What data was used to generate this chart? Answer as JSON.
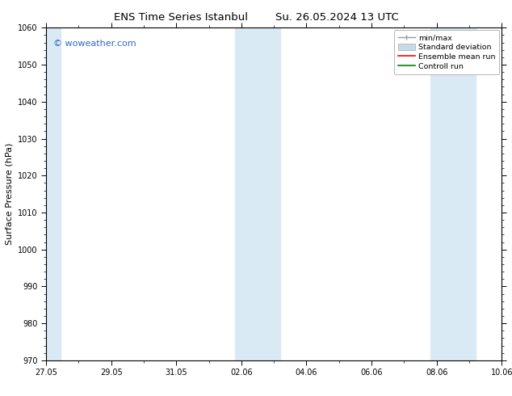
{
  "title1": "ENS Time Series Istanbul",
  "title2": "Su. 26.05.2024 13 UTC",
  "ylabel": "Surface Pressure (hPa)",
  "ylim": [
    970,
    1060
  ],
  "yticks": [
    970,
    980,
    990,
    1000,
    1010,
    1020,
    1030,
    1040,
    1050,
    1060
  ],
  "xlim_min": 0,
  "xlim_max": 14,
  "xtick_labels": [
    "27.05",
    "29.05",
    "31.05",
    "02.06",
    "04.06",
    "06.06",
    "08.06",
    "10.06"
  ],
  "xtick_positions": [
    0,
    2,
    4,
    6,
    8,
    10,
    12,
    14
  ],
  "shaded_bands": [
    {
      "start": 0.0,
      "end": 0.45
    },
    {
      "start": 5.8,
      "end": 7.2
    },
    {
      "start": 11.8,
      "end": 13.2
    }
  ],
  "shaded_color": "#daeaf5",
  "watermark": "© woweather.com",
  "watermark_color": "#3366cc",
  "background_color": "#ffffff",
  "plot_bg_color": "#ffffff",
  "legend_labels": [
    "min/max",
    "Standard deviation",
    "Ensemble mean run",
    "Controll run"
  ],
  "legend_colors": [
    "#999999",
    "#c5daea",
    "#ff0000",
    "#008000"
  ],
  "title_fontsize": 9.5,
  "tick_fontsize": 7,
  "label_fontsize": 8,
  "watermark_fontsize": 8,
  "legend_fontsize": 6.8
}
